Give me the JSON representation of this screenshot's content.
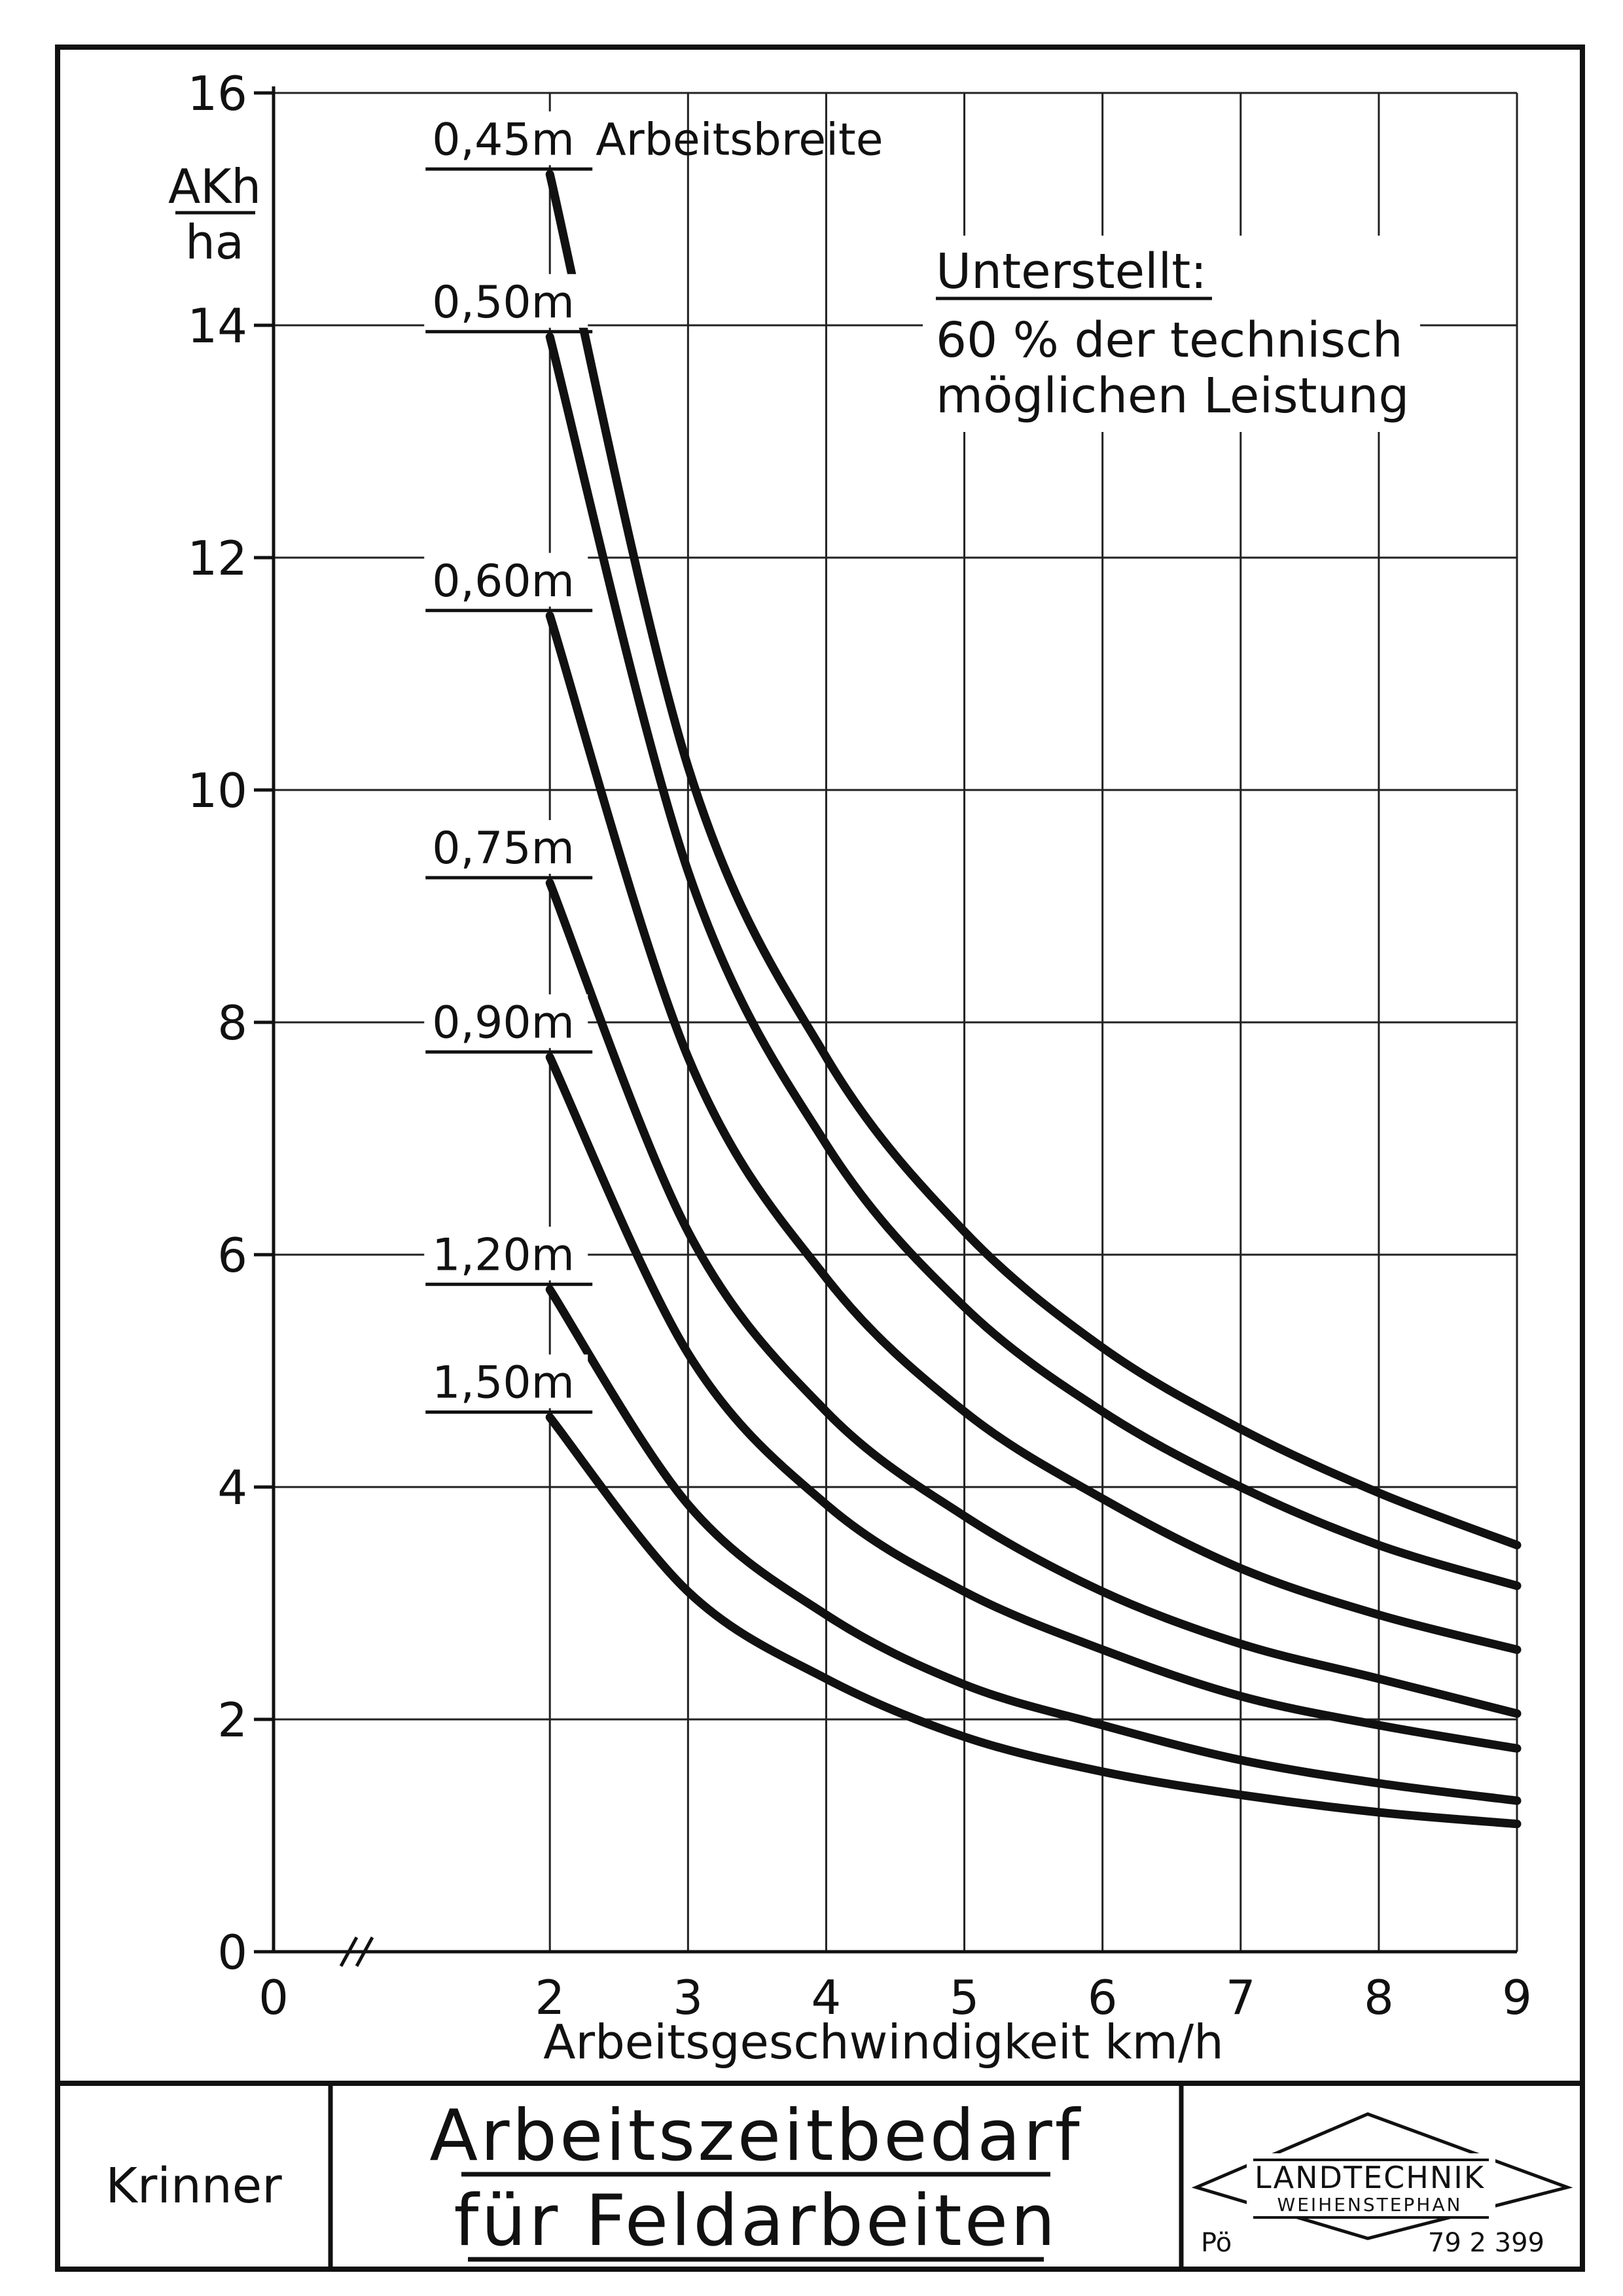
{
  "chart_data": {
    "type": "line",
    "title": "",
    "xlabel": "Arbeitsgeschwindigkeit km/h",
    "ylabel_numerator": "AKh",
    "ylabel_denominator": "ha",
    "xlim": [
      0,
      9
    ],
    "ylim": [
      0,
      16
    ],
    "x_ticks": [
      "0",
      "2",
      "3",
      "4",
      "5",
      "6",
      "7",
      "8",
      "9"
    ],
    "y_ticks": [
      "0",
      "2",
      "4",
      "6",
      "8",
      "10",
      "12",
      "14",
      "16"
    ],
    "x_axis_break": true,
    "grid": true,
    "legend_title": "Arbeitsbreite",
    "annotation": {
      "heading": "Unterstellt:",
      "line1": "60 % der technisch",
      "line2": "möglichen Leistung"
    },
    "x": [
      2,
      3,
      4,
      5,
      6,
      7,
      8,
      9
    ],
    "series": [
      {
        "name": "0,45m",
        "values": [
          15.3,
          10.2,
          7.7,
          6.2,
          5.2,
          4.5,
          3.95,
          3.5
        ]
      },
      {
        "name": "0,50m",
        "values": [
          13.9,
          9.3,
          6.95,
          5.55,
          4.65,
          4.0,
          3.5,
          3.15
        ]
      },
      {
        "name": "0,60m",
        "values": [
          11.5,
          7.7,
          5.8,
          4.65,
          3.9,
          3.3,
          2.9,
          2.6
        ]
      },
      {
        "name": "0,75m",
        "values": [
          9.2,
          6.2,
          4.65,
          3.75,
          3.1,
          2.65,
          2.35,
          2.05
        ]
      },
      {
        "name": "0,90m",
        "values": [
          7.7,
          5.15,
          3.85,
          3.1,
          2.6,
          2.2,
          1.95,
          1.75
        ]
      },
      {
        "name": "1,20m",
        "values": [
          5.7,
          3.85,
          2.9,
          2.3,
          1.95,
          1.65,
          1.45,
          1.3
        ]
      },
      {
        "name": "1,50m",
        "values": [
          4.6,
          3.1,
          2.35,
          1.85,
          1.55,
          1.35,
          1.2,
          1.1
        ]
      }
    ]
  },
  "footer": {
    "author": "Krinner",
    "title_line1": "Arbeitszeitbedarf",
    "title_line2": "für Feldarbeiten",
    "logo_line1": "LANDTECHNIK",
    "logo_line2": "WEIHENSTEPHAN",
    "code_left": "Pö",
    "code_right": "79 2 399"
  }
}
